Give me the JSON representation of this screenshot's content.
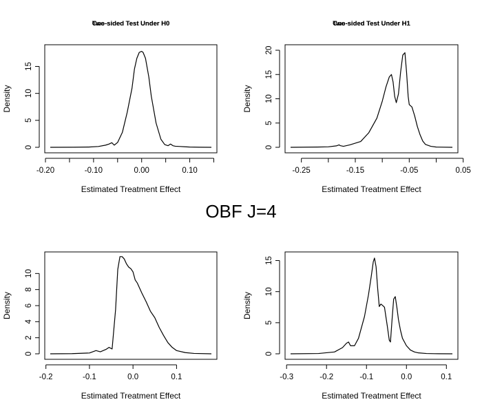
{
  "figure": {
    "title": "OBF J=4"
  },
  "chart_data": [
    {
      "type": "line",
      "title": "Two-sided Test Under H0",
      "xlabel": "Estimated Treatment Effect",
      "ylabel": "Density",
      "xlim": [
        -0.19,
        0.145
      ],
      "ylim": [
        0,
        18
      ],
      "xticks": [
        -0.2,
        -0.1,
        0.0,
        0.1
      ],
      "xtick_minor": [
        -0.15,
        -0.05,
        0.05,
        0.15
      ],
      "xtick_labels": [
        "-0.20",
        "-0.10",
        "0.00",
        "0.10"
      ],
      "yticks": [
        0,
        5,
        10,
        15
      ],
      "ytick_labels": [
        "0",
        "5",
        "10",
        "15"
      ],
      "series": [
        {
          "x": [
            -0.19,
            -0.14,
            -0.11,
            -0.09,
            -0.075,
            -0.068,
            -0.062,
            -0.057,
            -0.05,
            -0.04,
            -0.03,
            -0.02,
            -0.015,
            -0.01,
            -0.005,
            0.0,
            0.003,
            0.008,
            0.015,
            0.02,
            0.03,
            0.04,
            0.048,
            0.055,
            0.06,
            0.065,
            0.07,
            0.08,
            0.09,
            0.1,
            0.12,
            0.145
          ],
          "y": [
            0.0,
            0.02,
            0.05,
            0.15,
            0.4,
            0.6,
            0.85,
            0.4,
            0.9,
            2.8,
            6.5,
            11.0,
            14.5,
            16.5,
            17.6,
            17.8,
            17.6,
            16.5,
            13.0,
            9.5,
            4.5,
            1.5,
            0.5,
            0.3,
            0.6,
            0.3,
            0.2,
            0.15,
            0.1,
            0.05,
            0.02,
            0.0
          ]
        }
      ]
    },
    {
      "type": "line",
      "title": "Two-sided Test Under H1",
      "xlabel": "Estimated Treatment Effect",
      "ylabel": "Density",
      "xlim": [
        -0.27,
        0.03
      ],
      "ylim": [
        0,
        20
      ],
      "xticks": [
        -0.25,
        -0.15,
        -0.05,
        0.05
      ],
      "xtick_minor": [
        -0.2,
        -0.1,
        0.0
      ],
      "xtick_labels": [
        "-0.25",
        "-0.15",
        "-0.05",
        "0.05"
      ],
      "yticks": [
        0,
        5,
        10,
        15,
        20
      ],
      "ytick_labels": [
        "0",
        "5",
        "10",
        "15",
        "20"
      ],
      "series": [
        {
          "x": [
            -0.27,
            -0.22,
            -0.2,
            -0.185,
            -0.18,
            -0.178,
            -0.172,
            -0.16,
            -0.14,
            -0.125,
            -0.11,
            -0.1,
            -0.093,
            -0.087,
            -0.083,
            -0.08,
            -0.077,
            -0.074,
            -0.07,
            -0.066,
            -0.062,
            -0.058,
            -0.055,
            -0.052,
            -0.05,
            -0.045,
            -0.04,
            -0.035,
            -0.03,
            -0.025,
            -0.02,
            -0.01,
            0.0,
            0.03
          ],
          "y": [
            0.0,
            0.05,
            0.1,
            0.3,
            0.5,
            0.35,
            0.2,
            0.5,
            1.2,
            3.0,
            6.0,
            9.5,
            12.5,
            14.5,
            15.0,
            13.5,
            10.5,
            9.2,
            11.0,
            15.5,
            19.0,
            19.5,
            15.5,
            10.5,
            8.8,
            8.3,
            6.5,
            4.3,
            2.6,
            1.3,
            0.6,
            0.2,
            0.05,
            0.0
          ]
        }
      ]
    },
    {
      "type": "line",
      "title": "One-sided Test Under H0",
      "xlabel": "Estimated Treatment Effect",
      "ylabel": "Density",
      "xlim": [
        -0.19,
        0.18
      ],
      "ylim": [
        0,
        12
      ],
      "xticks": [
        -0.2,
        -0.1,
        0.0,
        0.1
      ],
      "xtick_minor": [],
      "xtick_labels": [
        "-0.2",
        "-0.1",
        "0.0",
        "0.1"
      ],
      "yticks": [
        0,
        2,
        4,
        6,
        8,
        10
      ],
      "ytick_labels": [
        "0",
        "2",
        "4",
        "6",
        "8",
        "10"
      ],
      "series": [
        {
          "x": [
            -0.19,
            -0.14,
            -0.1,
            -0.085,
            -0.075,
            -0.062,
            -0.055,
            -0.048,
            -0.04,
            -0.035,
            -0.03,
            -0.025,
            -0.02,
            -0.015,
            -0.01,
            -0.005,
            0.0,
            0.005,
            0.01,
            0.015,
            0.02,
            0.03,
            0.04,
            0.05,
            0.06,
            0.07,
            0.08,
            0.09,
            0.1,
            0.12,
            0.14,
            0.18
          ],
          "y": [
            0.0,
            0.02,
            0.1,
            0.4,
            0.25,
            0.55,
            0.8,
            0.6,
            5.5,
            10.5,
            12.1,
            12.1,
            11.8,
            11.2,
            10.8,
            10.6,
            10.2,
            9.2,
            8.8,
            8.2,
            7.6,
            6.5,
            5.3,
            4.5,
            3.3,
            2.3,
            1.4,
            0.8,
            0.4,
            0.15,
            0.05,
            0.0
          ]
        }
      ]
    },
    {
      "type": "line",
      "title": "One-sided Test Under H1",
      "xlabel": "Estimated Treatment Effect",
      "ylabel": "Density",
      "xlim": [
        -0.29,
        0.115
      ],
      "ylim": [
        0,
        15.5
      ],
      "xticks": [
        -0.3,
        -0.2,
        -0.1,
        0.0,
        0.1
      ],
      "xtick_minor": [],
      "xtick_labels": [
        "-0.3",
        "-0.2",
        "-0.1",
        "0.0",
        "0.1"
      ],
      "yticks": [
        0,
        5,
        10,
        15
      ],
      "ytick_labels": [
        "0",
        "5",
        "10",
        "15"
      ],
      "series": [
        {
          "x": [
            -0.29,
            -0.22,
            -0.18,
            -0.16,
            -0.15,
            -0.145,
            -0.14,
            -0.13,
            -0.12,
            -0.105,
            -0.095,
            -0.088,
            -0.083,
            -0.08,
            -0.076,
            -0.072,
            -0.068,
            -0.064,
            -0.06,
            -0.055,
            -0.048,
            -0.043,
            -0.04,
            -0.036,
            -0.032,
            -0.028,
            -0.024,
            -0.02,
            -0.015,
            -0.01,
            0.0,
            0.01,
            0.02,
            0.03,
            0.05,
            0.07,
            0.115
          ],
          "y": [
            0.0,
            0.05,
            0.3,
            1.0,
            1.7,
            1.9,
            1.3,
            1.3,
            2.5,
            6.0,
            9.5,
            12.5,
            14.8,
            15.4,
            14.0,
            10.5,
            7.6,
            8.0,
            7.8,
            7.5,
            4.5,
            2.2,
            1.9,
            5.5,
            8.8,
            9.2,
            7.5,
            5.5,
            3.8,
            2.5,
            1.3,
            0.6,
            0.3,
            0.15,
            0.05,
            0.02,
            0.0
          ]
        }
      ]
    }
  ]
}
